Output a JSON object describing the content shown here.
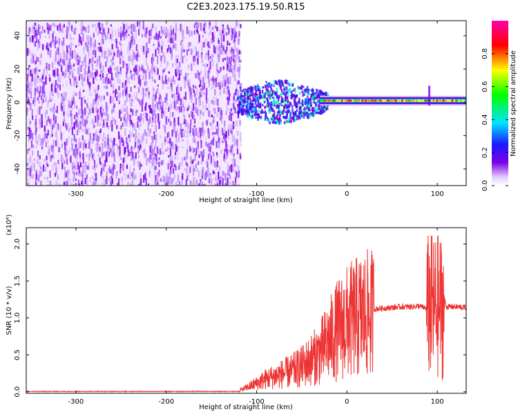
{
  "title": "C2E3.2023.175.19.50.R15",
  "chart_data": [
    {
      "type": "heatmap",
      "title": "",
      "xlabel": "Height of straight line (km)",
      "ylabel": "Frequency (Hz)",
      "xlim": [
        -355,
        132
      ],
      "ylim": [
        -50,
        49
      ],
      "x_ticks": [
        "-300",
        "-200",
        "-100",
        "0",
        "100"
      ],
      "x_tick_values": [
        -300,
        -200,
        -100,
        0,
        100
      ],
      "y_ticks": [
        "-40",
        "-20",
        "0",
        "20",
        "40"
      ],
      "y_tick_values": [
        -40,
        -20,
        0,
        20,
        40
      ],
      "noise_region_x": [
        -355,
        -118
      ],
      "signal_band_center_hz": 1,
      "colorbar": {
        "label": "Normalized spectral amplitude",
        "ticks": [
          "0.0",
          "0.2",
          "0.4",
          "0.6",
          "0.8"
        ],
        "tick_values": [
          0.0,
          0.2,
          0.4,
          0.6,
          0.8
        ],
        "range": [
          0,
          1
        ],
        "colors": [
          "#e6cfff",
          "#7a00e6",
          "#1a1aff",
          "#00e5ff",
          "#00ff00",
          "#ffff00",
          "#ff0000",
          "#ff00b0"
        ]
      }
    },
    {
      "type": "line",
      "title": "",
      "xlabel": "Height of straight line (km)",
      "ylabel": "SNR (10 * v/v)",
      "multiplier": "(x10⁴)",
      "xlim": [
        -355,
        132
      ],
      "ylim": [
        -0.02,
        2.22
      ],
      "x_ticks": [
        "-300",
        "-200",
        "-100",
        "0",
        "100"
      ],
      "x_tick_values": [
        -300,
        -200,
        -100,
        0,
        100
      ],
      "y_ticks": [
        "0.0",
        "0.5",
        "1.0",
        "1.5",
        "2.0"
      ],
      "y_tick_values": [
        0.0,
        0.5,
        1.0,
        1.5,
        2.0
      ],
      "line_color": "#ee3333",
      "series": [
        {
          "name": "",
          "x": [
            -355,
            -300,
            -250,
            -200,
            -150,
            -125,
            -115,
            -100,
            -90,
            -80,
            -70,
            -60,
            -50,
            -40,
            -30,
            -20,
            -10,
            0,
            10,
            20,
            30,
            40,
            50,
            60,
            70,
            80,
            85,
            90,
            92,
            95,
            98,
            100,
            105,
            110,
            120,
            132
          ],
          "y": [
            0.0,
            0.0,
            0.0,
            0.0,
            0.0,
            0.01,
            0.04,
            0.12,
            0.18,
            0.22,
            0.26,
            0.3,
            0.36,
            0.45,
            0.55,
            0.72,
            0.88,
            0.98,
            1.05,
            1.1,
            1.12,
            1.13,
            1.14,
            1.15,
            1.15,
            1.16,
            1.14,
            1.12,
            0.9,
            1.6,
            0.6,
            2.2,
            1.4,
            1.15,
            1.15,
            1.14
          ]
        }
      ]
    }
  ]
}
